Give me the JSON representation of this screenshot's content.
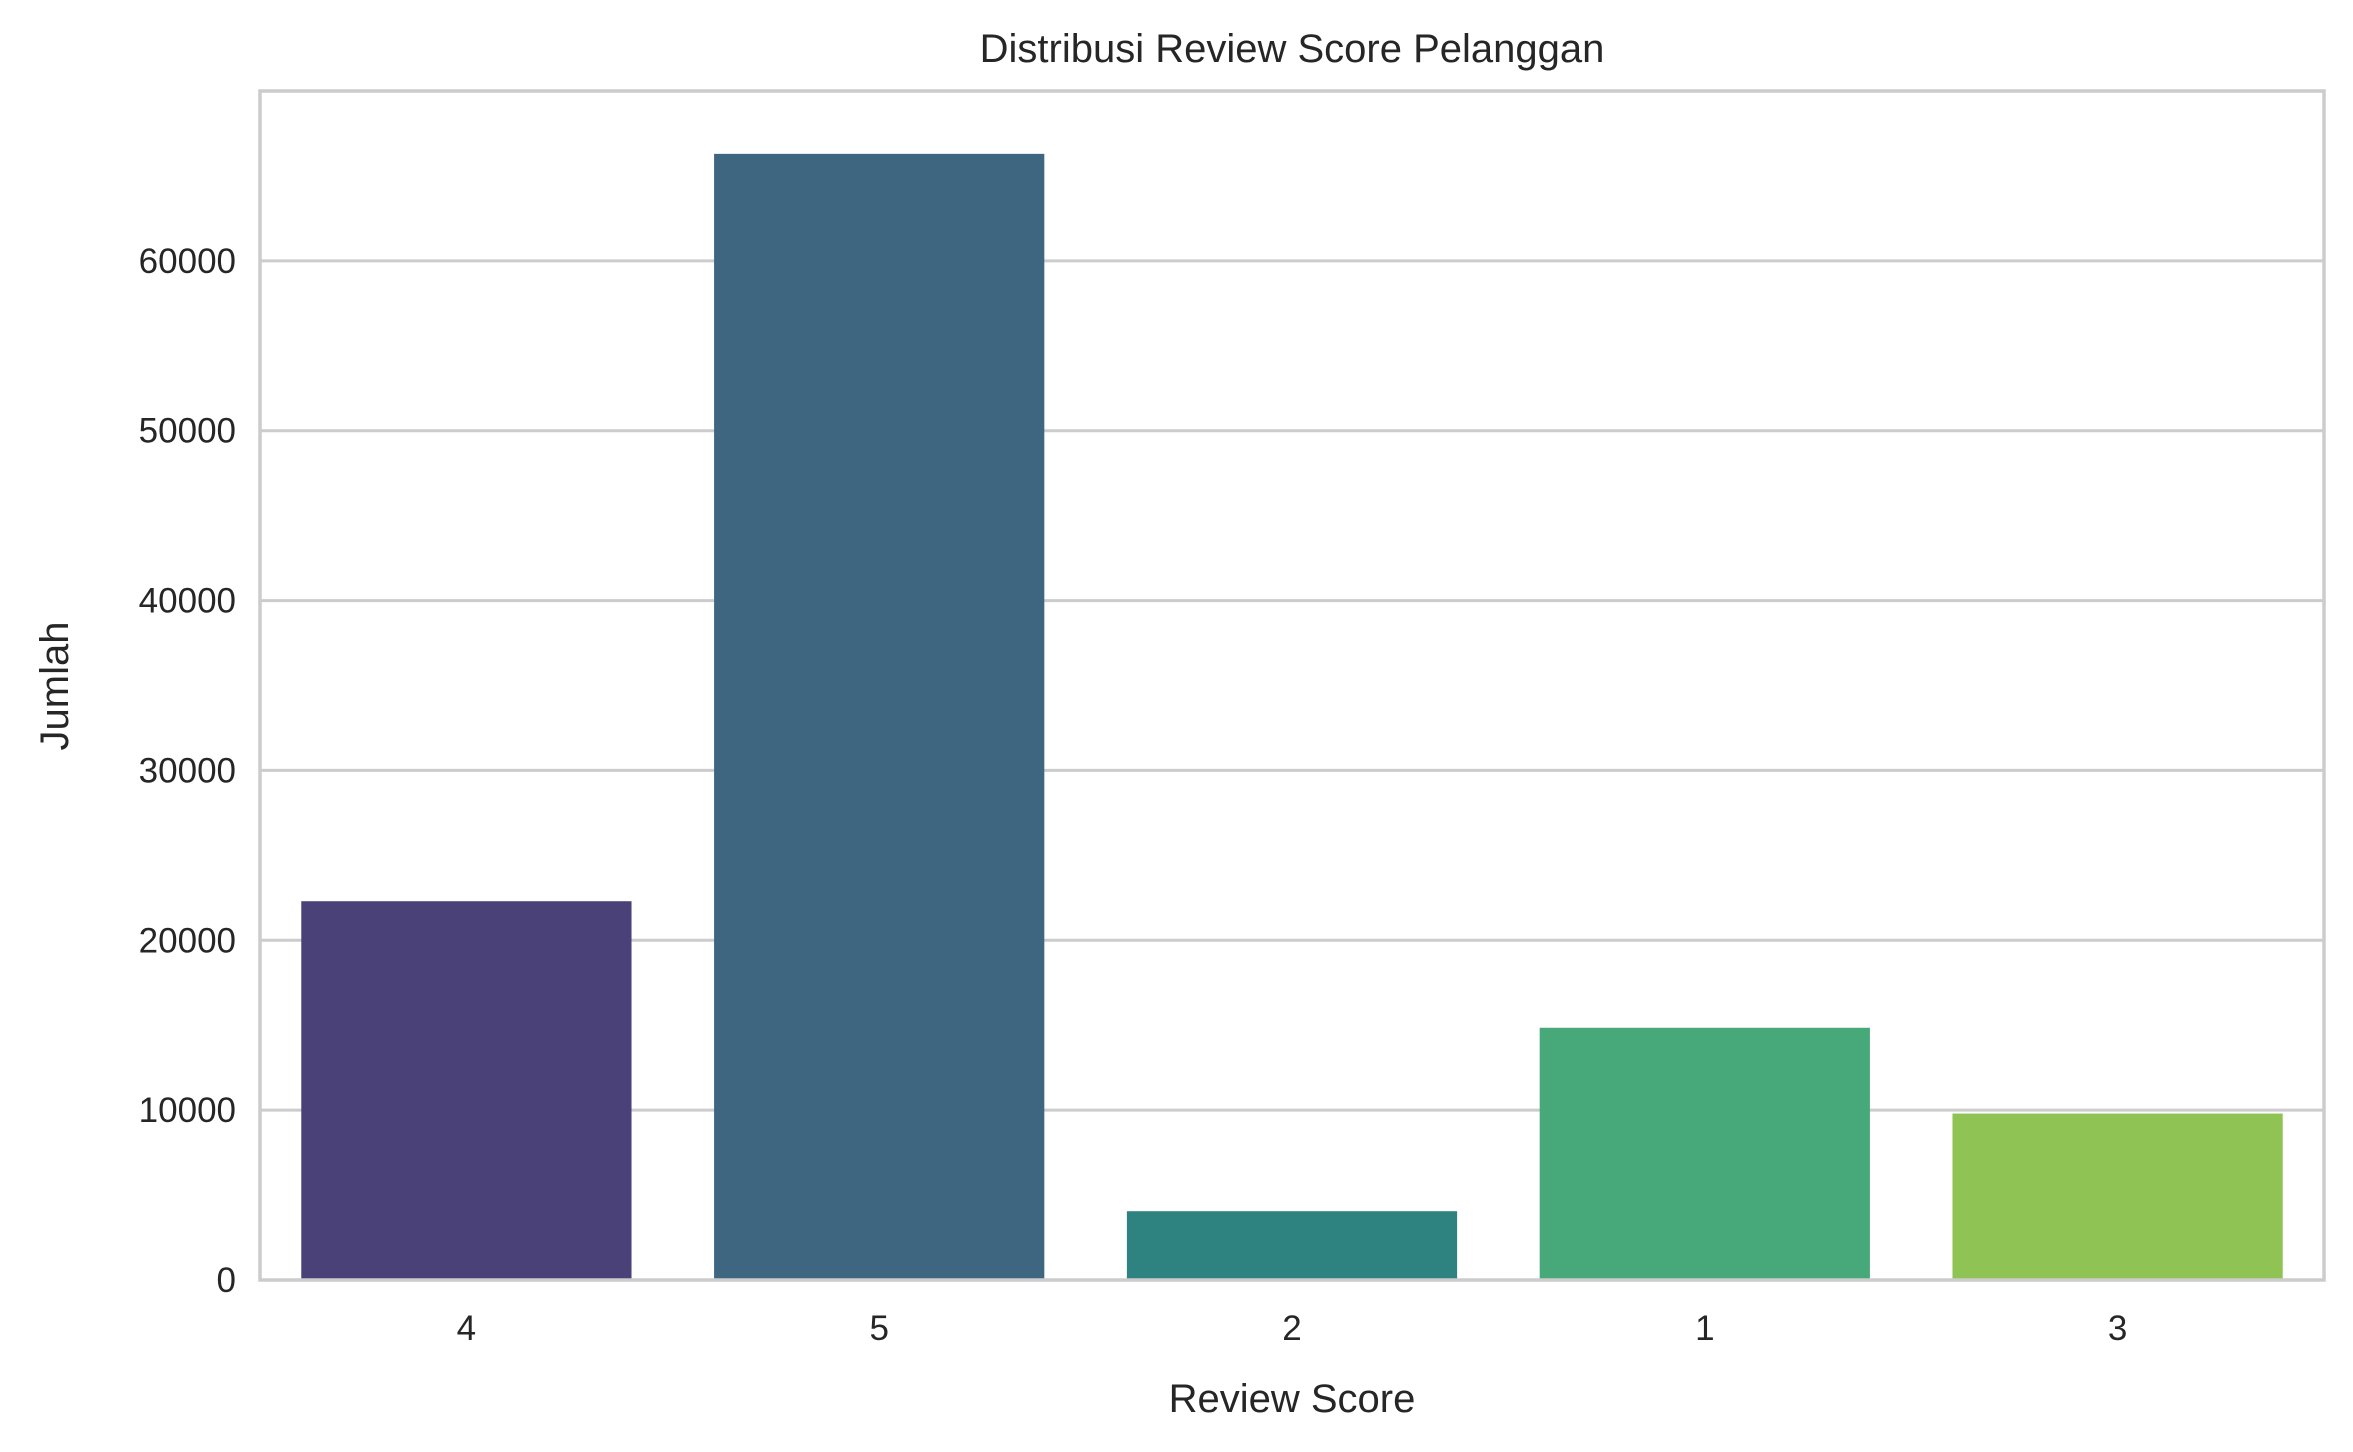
{
  "chart_data": {
    "type": "bar",
    "title": "Distribusi Review Score Pelanggan",
    "xlabel": "Review Score",
    "ylabel": "Jumlah",
    "categories": [
      "4",
      "5",
      "2",
      "1",
      "3"
    ],
    "values": [
      22300,
      66300,
      4050,
      14850,
      9800
    ],
    "colors": [
      "#4a4178",
      "#3f6680",
      "#2e8280",
      "#47a879",
      "#8fc455"
    ],
    "ylim": [
      0,
      70000
    ],
    "yticks": [
      0,
      10000,
      20000,
      30000,
      40000,
      50000,
      60000
    ],
    "ytick_labels": [
      "0",
      "10000",
      "20000",
      "30000",
      "40000",
      "50000",
      "60000"
    ],
    "grid": true,
    "grid_axis": "y"
  }
}
